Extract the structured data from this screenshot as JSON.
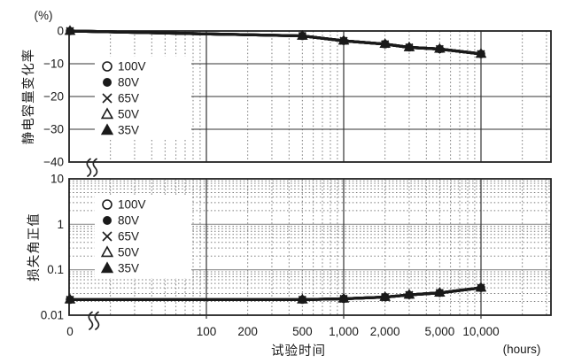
{
  "colors": {
    "background": "#ffffff",
    "series_line": "#1a1a1a",
    "marker": "#1a1a1a",
    "grid_dotted": "#7a7a7a",
    "grid_solid_black": "#333333",
    "grid_solid_gray": "#8f8f8f",
    "axis": "#222222",
    "text": "#1a1a1a"
  },
  "x_axis": {
    "title": "试验时间",
    "unit_label": "(hours)",
    "tick_labels": [
      {
        "value": 0,
        "label": "0"
      },
      {
        "value": 100,
        "label": "100"
      },
      {
        "value": 200,
        "label": "200"
      },
      {
        "value": 500,
        "label": "500"
      },
      {
        "value": 1000,
        "label": "1,000"
      },
      {
        "value": 2000,
        "label": "2,000"
      },
      {
        "value": 5000,
        "label": "5,000"
      },
      {
        "value": 10000,
        "label": "10,000"
      }
    ],
    "has_axis_break_after_zero": true
  },
  "chart_data": [
    {
      "type": "line",
      "ylabel": "静电容量变化率",
      "y_unit": "(%)",
      "yscale": "linear",
      "ylim": [
        -40,
        0
      ],
      "yticks": [
        {
          "value": 0,
          "label": "0"
        },
        {
          "value": -10,
          "label": "−10"
        },
        {
          "value": -20,
          "label": "−20"
        },
        {
          "value": -30,
          "label": "−30"
        },
        {
          "value": -40,
          "label": "−40"
        }
      ],
      "x": [
        0,
        500,
        1000,
        2000,
        3000,
        5000,
        10000
      ],
      "series": [
        {
          "name": "100V",
          "marker": "open-circle",
          "values": [
            0,
            -1.5,
            -3,
            -4,
            -5,
            -5.5,
            -7
          ]
        },
        {
          "name": "80V",
          "marker": "filled-circle",
          "values": [
            0,
            -1.5,
            -3,
            -4,
            -5,
            -5.5,
            -7
          ]
        },
        {
          "name": "65V",
          "marker": "cross",
          "values": [
            0,
            -1.5,
            -3,
            -4,
            -5,
            -5.5,
            -7
          ]
        },
        {
          "name": "50V",
          "marker": "open-triangle",
          "values": [
            0,
            -1.5,
            -3,
            -4,
            -5,
            -5.5,
            -7
          ]
        },
        {
          "name": "35V",
          "marker": "filled-triangle",
          "values": [
            0,
            -1.5,
            -3,
            -4,
            -5,
            -5.5,
            -7
          ]
        }
      ]
    },
    {
      "type": "line",
      "ylabel": "损失角正值",
      "y_unit": "",
      "yscale": "log",
      "ylim": [
        0.01,
        10
      ],
      "yticks": [
        {
          "value": 10,
          "label": "10"
        },
        {
          "value": 1,
          "label": "1"
        },
        {
          "value": 0.1,
          "label": "0.1"
        },
        {
          "value": 0.01,
          "label": "0.01"
        }
      ],
      "x": [
        0,
        500,
        1000,
        2000,
        3000,
        5000,
        10000
      ],
      "series": [
        {
          "name": "100V",
          "marker": "open-circle",
          "values": [
            0.022,
            0.022,
            0.023,
            0.025,
            0.028,
            0.031,
            0.04
          ]
        },
        {
          "name": "80V",
          "marker": "filled-circle",
          "values": [
            0.022,
            0.022,
            0.023,
            0.025,
            0.028,
            0.031,
            0.04
          ]
        },
        {
          "name": "65V",
          "marker": "cross",
          "values": [
            0.022,
            0.022,
            0.023,
            0.025,
            0.028,
            0.031,
            0.04
          ]
        },
        {
          "name": "50V",
          "marker": "open-triangle",
          "values": [
            0.022,
            0.022,
            0.023,
            0.025,
            0.028,
            0.031,
            0.04
          ]
        },
        {
          "name": "35V",
          "marker": "filled-triangle",
          "values": [
            0.022,
            0.022,
            0.023,
            0.025,
            0.028,
            0.031,
            0.04
          ]
        }
      ]
    }
  ]
}
